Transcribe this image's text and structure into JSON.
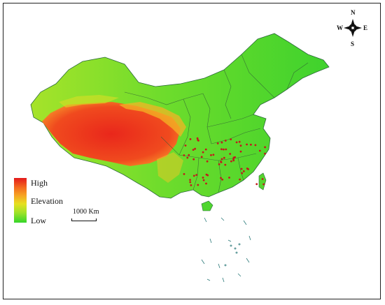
{
  "legend": {
    "high_label": "High",
    "title": "Elevation",
    "low_label": "Low",
    "colors": [
      "#e31a1c",
      "#f6a623",
      "#e6e020",
      "#34d62a"
    ]
  },
  "scale_bar": {
    "label": "1000 Km"
  },
  "compass": {
    "north": "N",
    "south": "S",
    "east": "E",
    "west": "W"
  },
  "map": {
    "land_colors": {
      "lowland": "#4fd62f",
      "mid": "#9ee227",
      "highland": "#f6a623",
      "plateau": "#e8331d"
    },
    "site_marker_color": "#c21b1b",
    "site_marker_count": 70
  }
}
